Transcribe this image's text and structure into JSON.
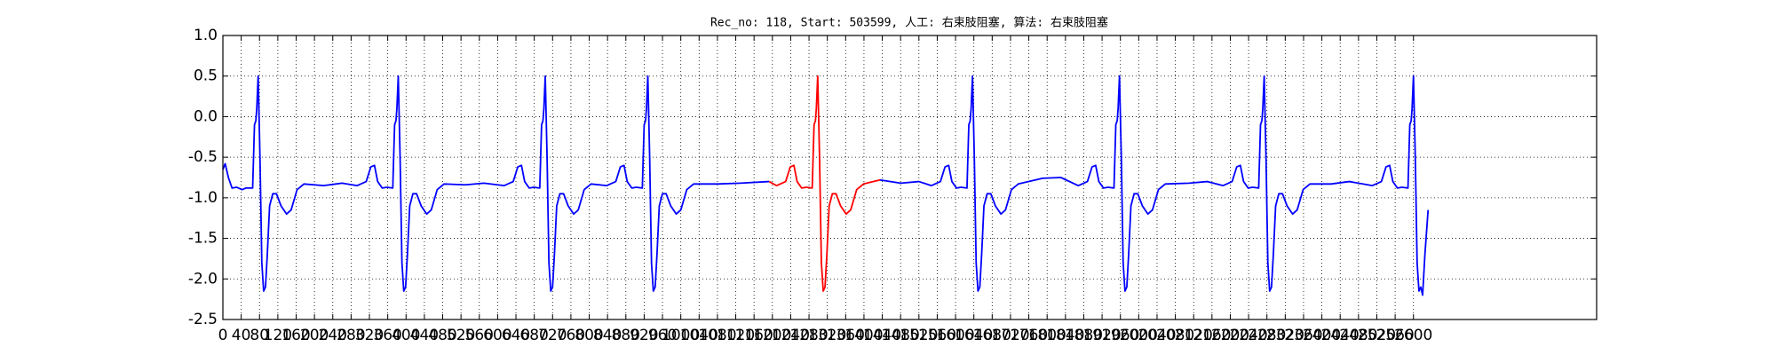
{
  "chart_data": {
    "type": "line",
    "title": "Rec_no: 118, Start: 503599, 人工: 右束肢阻塞, 算法: 右束肢阻塞",
    "xlim": [
      0,
      3000
    ],
    "xticks": [
      0,
      40,
      80,
      120,
      160,
      200,
      240,
      280,
      320,
      360,
      400,
      440,
      480,
      520,
      560,
      600,
      640,
      680,
      720,
      760,
      800,
      840,
      880,
      920,
      960,
      1000,
      1040,
      1080,
      1120,
      1160,
      1200,
      1240,
      1280,
      1320,
      1360,
      1400,
      1440,
      1480,
      1520,
      1560,
      1600,
      1640,
      1680,
      1720,
      1760,
      1800,
      1840,
      1880,
      1920,
      1960,
      2000,
      2040,
      2080,
      2120,
      2160,
      2200,
      2240,
      2280,
      2320,
      2360,
      2400,
      2440,
      2480,
      2520,
      2560,
      2600
    ],
    "ylim": [
      -2.5,
      1.0
    ],
    "yticks": [
      {
        "value": -2.5,
        "label": "-2.5"
      },
      {
        "value": -2,
        "label": "-2.0"
      },
      {
        "value": -1.5,
        "label": "-1.5"
      },
      {
        "value": -1,
        "label": "-1.0"
      },
      {
        "value": -0.5,
        "label": "-0.5"
      },
      {
        "value": 0,
        "label": "0.0"
      },
      {
        "value": 0.5,
        "label": "0.5"
      },
      {
        "value": 1,
        "label": "1.0"
      }
    ],
    "grid": true,
    "series": [
      {
        "color": "#0000ff",
        "x": [
          0,
          5,
          12,
          20,
          30,
          42,
          50,
          65,
          69,
          72,
          74,
          77,
          81,
          85,
          89,
          93,
          97,
          102,
          109,
          117,
          127,
          139,
          149,
          162,
          177,
          220,
          260,
          293,
          313,
          323,
          331,
          338,
          348,
          358,
          371,
          375,
          378,
          380,
          383,
          387,
          391,
          395,
          399,
          403,
          408,
          415,
          423,
          433,
          445,
          455,
          468,
          483,
          530,
          570,
          614,
          634,
          644,
          652,
          659,
          669,
          679,
          692,
          696,
          699,
          701,
          704,
          708,
          712,
          716,
          720,
          724,
          729,
          736,
          744,
          754,
          766,
          776,
          789,
          804,
          838,
          858,
          868,
          876,
          883,
          893,
          903,
          916,
          920,
          923,
          925,
          928,
          932,
          936,
          940,
          944,
          948,
          953,
          960,
          968,
          978,
          990,
          1000,
          1013,
          1028,
          1080,
          1130,
          1193
        ],
        "values": [
          -0.65,
          -0.58,
          -0.75,
          -0.88,
          -0.87,
          -0.9,
          -0.88,
          -0.88,
          -0.1,
          -0.05,
          0.1,
          0.5,
          -0.5,
          -1.8,
          -2.15,
          -2.1,
          -1.7,
          -1.1,
          -0.95,
          -0.95,
          -1.1,
          -1.2,
          -1.15,
          -0.9,
          -0.83,
          -0.85,
          -0.82,
          -0.85,
          -0.8,
          -0.62,
          -0.6,
          -0.8,
          -0.88,
          -0.87,
          -0.88,
          -0.1,
          -0.05,
          0.1,
          0.5,
          -0.5,
          -1.8,
          -2.15,
          -2.1,
          -1.7,
          -1.1,
          -0.95,
          -0.95,
          -1.1,
          -1.2,
          -1.15,
          -0.9,
          -0.83,
          -0.84,
          -0.82,
          -0.85,
          -0.8,
          -0.62,
          -0.6,
          -0.8,
          -0.88,
          -0.87,
          -0.88,
          -0.1,
          -0.05,
          0.1,
          0.5,
          -0.5,
          -1.8,
          -2.15,
          -2.1,
          -1.7,
          -1.1,
          -0.95,
          -0.95,
          -1.1,
          -1.2,
          -1.15,
          -0.9,
          -0.83,
          -0.85,
          -0.8,
          -0.62,
          -0.6,
          -0.8,
          -0.88,
          -0.87,
          -0.88,
          -0.1,
          -0.05,
          0.1,
          0.5,
          -0.5,
          -1.8,
          -2.15,
          -2.1,
          -1.7,
          -1.1,
          -0.95,
          -0.95,
          -1.1,
          -1.2,
          -1.15,
          -0.9,
          -0.83,
          -0.83,
          -0.82,
          -0.8
        ]
      },
      {
        "color": "#ff0000",
        "x": [
          1193,
          1209,
          1229,
          1239,
          1247,
          1254,
          1264,
          1274,
          1287,
          1291,
          1294,
          1296,
          1299,
          1303,
          1307,
          1311,
          1315,
          1319,
          1324,
          1331,
          1339,
          1349,
          1361,
          1371,
          1384,
          1399,
          1435
        ],
        "values": [
          -0.8,
          -0.85,
          -0.8,
          -0.62,
          -0.6,
          -0.8,
          -0.88,
          -0.87,
          -0.88,
          -0.1,
          -0.05,
          0.1,
          0.5,
          -0.5,
          -1.8,
          -2.15,
          -2.1,
          -1.7,
          -1.1,
          -0.95,
          -0.95,
          -1.1,
          -1.2,
          -1.15,
          -0.9,
          -0.83,
          -0.78
        ]
      },
      {
        "color": "#0000ff",
        "x": [
          1435,
          1480,
          1520,
          1547,
          1567,
          1577,
          1585,
          1592,
          1602,
          1612,
          1625,
          1629,
          1632,
          1634,
          1637,
          1641,
          1645,
          1649,
          1653,
          1657,
          1662,
          1669,
          1677,
          1687,
          1699,
          1709,
          1722,
          1737,
          1790,
          1830,
          1868,
          1888,
          1898,
          1906,
          1913,
          1923,
          1933,
          1946,
          1950,
          1953,
          1955,
          1958,
          1962,
          1966,
          1970,
          1974,
          1978,
          1983,
          1990,
          1998,
          2008,
          2020,
          2030,
          2043,
          2058,
          2110,
          2150,
          2184,
          2204,
          2214,
          2222,
          2229,
          2239,
          2249,
          2262,
          2266,
          2269,
          2271,
          2274,
          2278,
          2282,
          2286,
          2290,
          2294,
          2299,
          2306,
          2314,
          2324,
          2336,
          2346,
          2359,
          2374,
          2420,
          2460,
          2510,
          2530,
          2540,
          2548,
          2555,
          2565,
          2575,
          2588,
          2592,
          2595,
          2597,
          2600,
          2604,
          2608,
          2612,
          2616,
          2620,
          2625,
          2632
        ],
        "values": [
          -0.78,
          -0.82,
          -0.8,
          -0.85,
          -0.8,
          -0.62,
          -0.6,
          -0.8,
          -0.88,
          -0.87,
          -0.88,
          -0.1,
          -0.05,
          0.1,
          0.5,
          -0.5,
          -1.8,
          -2.15,
          -2.1,
          -1.7,
          -1.1,
          -0.95,
          -0.95,
          -1.1,
          -1.2,
          -1.15,
          -0.9,
          -0.83,
          -0.76,
          -0.75,
          -0.85,
          -0.8,
          -0.62,
          -0.6,
          -0.8,
          -0.88,
          -0.87,
          -0.88,
          -0.1,
          -0.05,
          0.1,
          0.5,
          -0.5,
          -1.8,
          -2.15,
          -2.1,
          -1.7,
          -1.1,
          -0.95,
          -0.95,
          -1.1,
          -1.2,
          -1.15,
          -0.9,
          -0.83,
          -0.82,
          -0.8,
          -0.85,
          -0.8,
          -0.62,
          -0.6,
          -0.8,
          -0.88,
          -0.87,
          -0.88,
          -0.1,
          -0.05,
          0.1,
          0.5,
          -0.5,
          -1.8,
          -2.15,
          -2.1,
          -1.7,
          -1.1,
          -0.95,
          -0.95,
          -1.1,
          -1.2,
          -1.15,
          -0.9,
          -0.83,
          -0.83,
          -0.8,
          -0.85,
          -0.8,
          -0.62,
          -0.6,
          -0.8,
          -0.88,
          -0.87,
          -0.88,
          -0.1,
          -0.05,
          0.1,
          0.5,
          -0.5,
          -1.8,
          -2.15,
          -2.1,
          -2.2,
          -1.7,
          -1.15
        ]
      }
    ]
  }
}
